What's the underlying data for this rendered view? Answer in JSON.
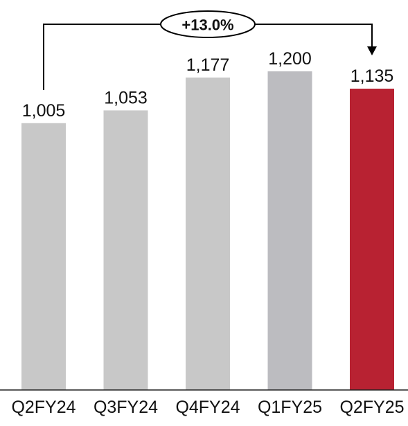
{
  "chart_data": {
    "type": "bar",
    "categories": [
      "Q2FY24",
      "Q3FY24",
      "Q4FY24",
      "Q1FY25",
      "Q2FY25"
    ],
    "values": [
      1005,
      1053,
      1177,
      1200,
      1135
    ],
    "value_labels": [
      "1,005",
      "1,053",
      "1,177",
      "1,200",
      "1,135"
    ],
    "bar_colors": [
      "#c8c8c8",
      "#c8c8c8",
      "#c8c8c8",
      "#bcbcc0",
      "#b82232"
    ],
    "ylim": [
      0,
      1200
    ],
    "grid": false,
    "annotation": {
      "text": "+13.0%",
      "from_category": "Q2FY24",
      "to_category": "Q2FY25"
    }
  }
}
